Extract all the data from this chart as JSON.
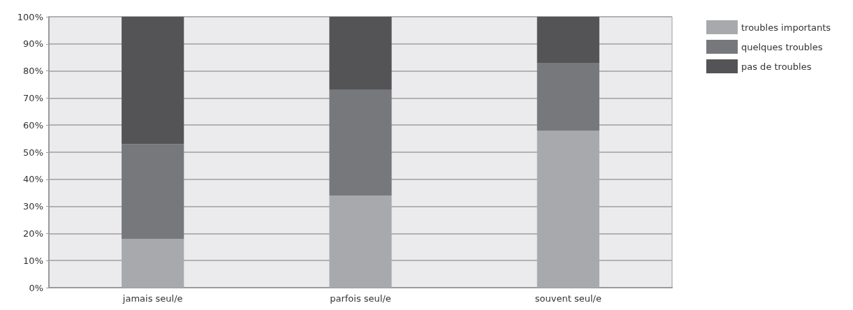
{
  "chart_data": {
    "type": "bar",
    "stacked": true,
    "categories": [
      "jamais seul/e",
      "parfois seul/e",
      "souvent seul/e"
    ],
    "series": [
      {
        "name": "troubles importants",
        "color": "#a8a9ac",
        "values": [
          18,
          34,
          58
        ]
      },
      {
        "name": "quelques troubles",
        "color": "#77787b",
        "values": [
          35,
          39,
          25
        ]
      },
      {
        "name": "pas de troubles",
        "color": "#545456",
        "values": [
          47,
          27,
          17
        ]
      }
    ],
    "ylim": [
      0,
      100
    ],
    "yticks": [
      {
        "value": 0,
        "label": "0%"
      },
      {
        "value": 10,
        "label": "10%"
      },
      {
        "value": 20,
        "label": "20%"
      },
      {
        "value": 30,
        "label": "30%"
      },
      {
        "value": 40,
        "label": "40%"
      },
      {
        "value": 50,
        "label": "50%"
      },
      {
        "value": 60,
        "label": "60%"
      },
      {
        "value": 70,
        "label": "70%"
      },
      {
        "value": 80,
        "label": "80%"
      },
      {
        "value": 90,
        "label": "90%"
      },
      {
        "value": 100,
        "label": "100%"
      }
    ],
    "grid": "y",
    "legend": "top right"
  }
}
